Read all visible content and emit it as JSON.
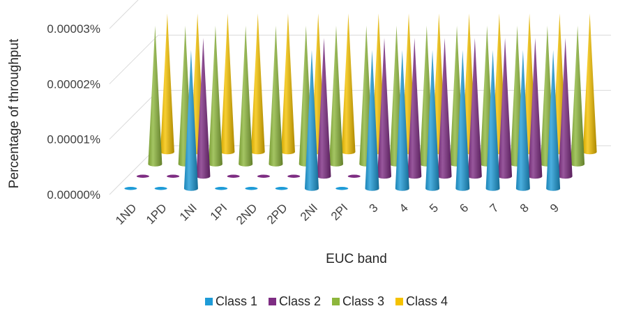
{
  "chart_data": {
    "type": "bar",
    "subtype": "3d-cone-clustered",
    "xlabel": "EUC band",
    "ylabel": "Percentage of throughput",
    "yticks": [
      "0.00000%",
      "0.00001%",
      "0.00002%",
      "0.00003%"
    ],
    "ylim": [
      0,
      3e-05
    ],
    "grid": true,
    "legend_position": "bottom",
    "categories": [
      "1ND",
      "1PD",
      "1NI",
      "1PI",
      "2ND",
      "2PD",
      "2NI",
      "2PI",
      "3",
      "4",
      "5",
      "6",
      "7",
      "8",
      "9"
    ],
    "series": [
      {
        "name": "Class 1",
        "color": "#1E9BD7",
        "values": [
          0,
          0,
          2.5e-05,
          0,
          0,
          0,
          2.5e-05,
          0,
          2.5e-05,
          2.5e-05,
          2.5e-05,
          2.5e-05,
          2.5e-05,
          2.5e-05,
          2.5e-05
        ]
      },
      {
        "name": "Class 2",
        "color": "#7E2D83",
        "values": [
          0,
          0,
          2.5e-05,
          0,
          0,
          0,
          2.5e-05,
          0,
          2.5e-05,
          2.5e-05,
          2.5e-05,
          2.5e-05,
          2.5e-05,
          2.5e-05,
          2.5e-05
        ]
      },
      {
        "name": "Class 3",
        "color": "#8DB63C",
        "values": [
          2.5e-05,
          2.5e-05,
          2.5e-05,
          2.5e-05,
          2.5e-05,
          2.5e-05,
          2.5e-05,
          2.5e-05,
          2.5e-05,
          2.5e-05,
          2.5e-05,
          2.5e-05,
          2.5e-05,
          2.5e-05,
          2.5e-05
        ]
      },
      {
        "name": "Class 4",
        "color": "#F5C200",
        "values": [
          2.5e-05,
          2.5e-05,
          2.5e-05,
          2.5e-05,
          2.5e-05,
          2.5e-05,
          2.5e-05,
          2.5e-05,
          2.5e-05,
          2.5e-05,
          2.5e-05,
          2.5e-05,
          2.5e-05,
          2.5e-05,
          2.5e-05
        ]
      }
    ]
  }
}
